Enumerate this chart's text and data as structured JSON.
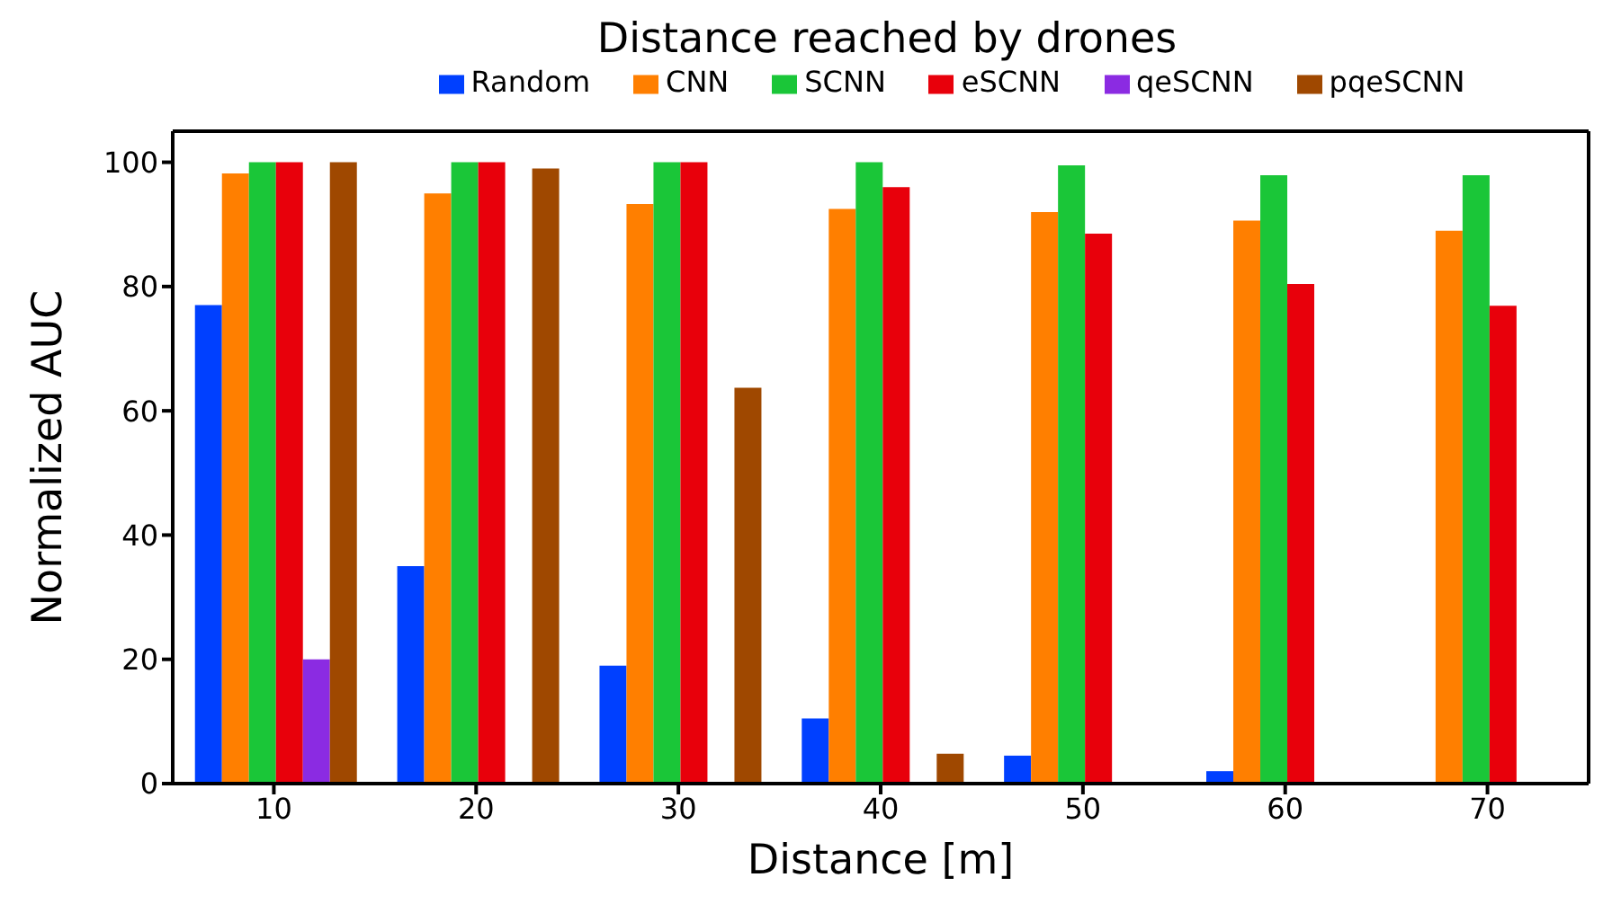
{
  "chart_data": {
    "type": "bar",
    "title": "Distance reached by drones",
    "xlabel": "Distance [m]",
    "ylabel": "Normalized AUC",
    "categories": [
      "10",
      "20",
      "30",
      "40",
      "50",
      "60",
      "70"
    ],
    "series": [
      {
        "name": "Random",
        "color": "#0040ff",
        "values": [
          77,
          35,
          19,
          10.5,
          4.5,
          2,
          null
        ]
      },
      {
        "name": "CNN",
        "color": "#ff7f00",
        "values": [
          98.2,
          95,
          93.3,
          92.5,
          92,
          90.6,
          89
        ]
      },
      {
        "name": "SCNN",
        "color": "#1ac638",
        "values": [
          100,
          100,
          100,
          100,
          99.5,
          97.9,
          97.9
        ]
      },
      {
        "name": "eSCNN",
        "color": "#e8000b",
        "values": [
          100,
          100,
          100,
          96,
          88.5,
          80.4,
          76.9
        ]
      },
      {
        "name": "qeSCNN",
        "color": "#8b2be2",
        "values": [
          20,
          null,
          null,
          null,
          null,
          null,
          null
        ]
      },
      {
        "name": "pqeSCNN",
        "color": "#9f4800",
        "values": [
          100,
          99,
          63.7,
          4.8,
          null,
          null,
          null
        ]
      }
    ],
    "ylim": [
      0,
      105
    ],
    "yticks": [
      0,
      20,
      40,
      60,
      80,
      100
    ],
    "grid": false,
    "legend": "top"
  }
}
